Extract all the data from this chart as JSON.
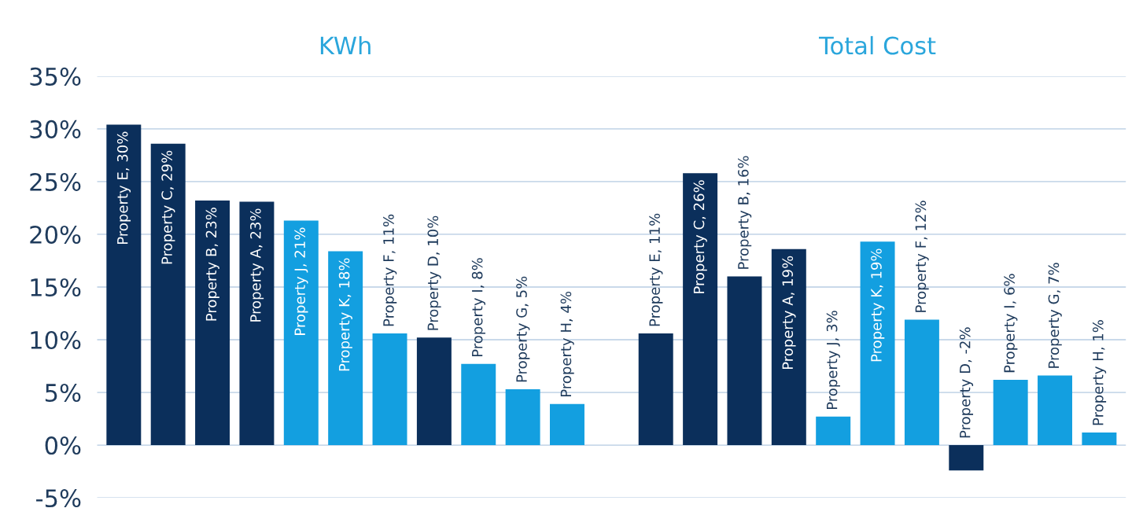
{
  "chart_data": {
    "type": "bar",
    "annotations": [
      "KWh",
      "Total Cost"
    ],
    "categories": [
      null,
      null,
      null,
      null,
      null,
      null,
      null,
      null,
      null,
      null,
      null,
      null,
      null,
      null,
      null,
      null,
      null,
      null,
      null,
      null,
      null,
      null,
      null
    ],
    "values": [
      30.4,
      28.6,
      23.2,
      23.1,
      21.3,
      18.4,
      10.6,
      10.2,
      7.7,
      5.3,
      3.9,
      null,
      10.6,
      25.8,
      16.0,
      18.6,
      2.7,
      19.3,
      11.9,
      -2.4,
      6.2,
      6.6,
      1.2
    ],
    "colors": [
      "#0b2f5b",
      "#0b2f5b",
      "#0b2f5b",
      "#0b2f5b",
      "#139fe0",
      "#139fe0",
      "#139fe0",
      "#0b2f5b",
      "#139fe0",
      "#139fe0",
      "#139fe0",
      null,
      "#0b2f5b",
      "#0b2f5b",
      "#0b2f5b",
      "#0b2f5b",
      "#139fe0",
      "#139fe0",
      "#139fe0",
      "#0b2f5b",
      "#139fe0",
      "#139fe0",
      "#139fe0"
    ],
    "value_labels": [
      "Property E, 30%",
      "Property C, 29%",
      "Property B, 23%",
      "Property A, 23%",
      "Property J, 21%",
      "Property K, 18%",
      "Property F, 11%",
      "Property D, 10%",
      "Property I, 8%",
      "Property G, 5%",
      "Property H, 4%",
      null,
      "Property E, 11%",
      "Property C, 26%",
      "Property B, 16%",
      "Property A, 19%",
      "Property J, 3%",
      "Property K, 19%",
      "Property F, 12%",
      "Property D, -2%",
      "Property I, 6%",
      "Property G, 7%",
      "Property H, 1%"
    ],
    "ylim": [
      -5,
      35
    ],
    "yticks": [
      {
        "value": -5,
        "label": "-5%"
      },
      {
        "value": 0,
        "label": "0%"
      },
      {
        "value": 5,
        "label": "5%"
      },
      {
        "value": 10,
        "label": "10%"
      },
      {
        "value": 15,
        "label": "15%"
      },
      {
        "value": 20,
        "label": "20%"
      },
      {
        "value": 25,
        "label": "25%"
      },
      {
        "value": 30,
        "label": "30%"
      },
      {
        "value": 35,
        "label": "35%"
      }
    ],
    "grid": "y"
  }
}
